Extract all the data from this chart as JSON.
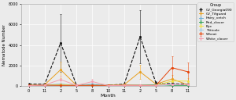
{
  "title": "",
  "xlabel": "Month",
  "ylabel": "Nematode Number",
  "ylim": [
    0,
    8000
  ],
  "yticks": [
    0,
    2000,
    4000,
    6000,
    8000
  ],
  "background_color": "#ebebeb",
  "grid_color": "#ffffff",
  "x_labels": [
    "0",
    "11",
    "2",
    "5",
    "8",
    "10",
    "11",
    "2",
    "5",
    "8",
    "11"
  ],
  "n_points": 11,
  "groups": {
    "CV_Georgia090": {
      "color": "#111111",
      "linestyle": "--",
      "linewidth": 0.8,
      "y": [
        200,
        200,
        4200,
        100,
        100,
        100,
        200,
        4800,
        300,
        250,
        200
      ],
      "yerr": [
        100,
        150,
        2800,
        80,
        80,
        80,
        150,
        2600,
        200,
        180,
        120
      ]
    },
    "CV_Tifguard": {
      "color": "#e8a020",
      "linestyle": "-",
      "linewidth": 0.7,
      "y": [
        100,
        150,
        1600,
        80,
        80,
        80,
        150,
        1400,
        200,
        700,
        150
      ],
      "yerr": [
        80,
        100,
        800,
        50,
        50,
        50,
        100,
        700,
        120,
        400,
        100
      ]
    },
    "Hairy_vetch": {
      "color": "#6baed6",
      "linestyle": "-",
      "linewidth": 0.7,
      "y": [
        80,
        120,
        200,
        80,
        200,
        80,
        100,
        80,
        80,
        200,
        100
      ],
      "yerr": [
        50,
        80,
        120,
        50,
        120,
        50,
        70,
        50,
        50,
        120,
        70
      ]
    },
    "Red_clover": {
      "color": "#31a354",
      "linestyle": "-",
      "linewidth": 0.7,
      "y": [
        60,
        80,
        100,
        60,
        100,
        60,
        80,
        100,
        150,
        80,
        80
      ],
      "yerr": [
        40,
        50,
        70,
        40,
        70,
        40,
        50,
        70,
        90,
        50,
        50
      ]
    },
    "Rye": {
      "color": "#f0e040",
      "linestyle": "-",
      "linewidth": 0.7,
      "y": [
        80,
        100,
        150,
        80,
        80,
        80,
        100,
        80,
        80,
        500,
        500
      ],
      "yerr": [
        50,
        70,
        100,
        50,
        50,
        50,
        70,
        50,
        50,
        300,
        300
      ]
    },
    "Triticale": {
      "color": "#9ecae1",
      "linestyle": "-",
      "linewidth": 0.7,
      "y": [
        60,
        80,
        80,
        60,
        100,
        60,
        80,
        80,
        80,
        150,
        150
      ],
      "yerr": [
        40,
        50,
        50,
        40,
        70,
        40,
        50,
        50,
        50,
        90,
        90
      ]
    },
    "Wheat": {
      "color": "#e6440a",
      "linestyle": "-",
      "linewidth": 0.7,
      "y": [
        80,
        100,
        80,
        80,
        80,
        80,
        100,
        80,
        80,
        1800,
        1400
      ],
      "yerr": [
        50,
        70,
        50,
        50,
        50,
        50,
        70,
        50,
        50,
        1100,
        900
      ]
    },
    "White_clover": {
      "color": "#f4a0b0",
      "linestyle": "-",
      "linewidth": 0.7,
      "y": [
        60,
        120,
        650,
        80,
        450,
        60,
        80,
        80,
        80,
        180,
        150
      ],
      "yerr": [
        40,
        80,
        400,
        50,
        280,
        40,
        50,
        50,
        50,
        110,
        90
      ]
    }
  }
}
